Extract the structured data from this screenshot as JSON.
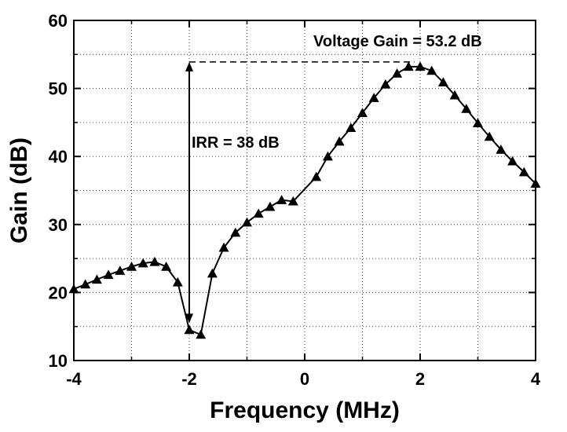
{
  "chart_data": {
    "type": "line",
    "xlabel": "Frequency (MHz)",
    "ylabel": "Gain (dB)",
    "xlim": [
      -4,
      4
    ],
    "ylim": [
      10,
      60
    ],
    "xticks": [
      -4,
      -2,
      0,
      2,
      4
    ],
    "yticks": [
      10,
      20,
      30,
      40,
      50,
      60
    ],
    "xtick_labels": [
      "-4",
      "-2",
      "0",
      "2",
      "4"
    ],
    "ytick_labels": [
      "10",
      "20",
      "30",
      "40",
      "50",
      "60"
    ],
    "grid": true,
    "marker": "triangle",
    "series": [
      {
        "x": [
          -4.0,
          -3.8,
          -3.6,
          -3.4,
          -3.2,
          -3.0,
          -2.8,
          -2.6,
          -2.4,
          -2.2,
          -2.0,
          -1.8,
          -1.6,
          -1.4,
          -1.2,
          -1.0,
          -0.8,
          -0.6,
          -0.4,
          -0.2,
          0.2,
          0.4,
          0.6,
          0.8,
          1.0,
          1.2,
          1.4,
          1.6,
          1.8,
          2.0,
          2.2,
          2.4,
          2.6,
          2.8,
          3.0,
          3.2,
          3.4,
          3.6,
          3.8,
          4.0
        ],
        "y": [
          20.5,
          21.2,
          21.9,
          22.6,
          23.2,
          23.8,
          24.3,
          24.5,
          23.8,
          21.5,
          14.5,
          13.8,
          22.8,
          26.6,
          28.8,
          30.3,
          31.6,
          32.6,
          33.6,
          33.4,
          37.0,
          40.0,
          42.2,
          44.2,
          46.4,
          48.6,
          50.6,
          52.2,
          53.2,
          53.2,
          52.6,
          50.9,
          49.0,
          47.0,
          44.9,
          42.9,
          41.0,
          39.3,
          37.7,
          36.0
        ]
      }
    ],
    "annotations": {
      "gain_text": "Voltage Gain = 53.2 dB",
      "irr_text": "IRR = 38 dB",
      "peak_level": 53.9,
      "image_freq": -2,
      "image_level": 15.5
    }
  }
}
